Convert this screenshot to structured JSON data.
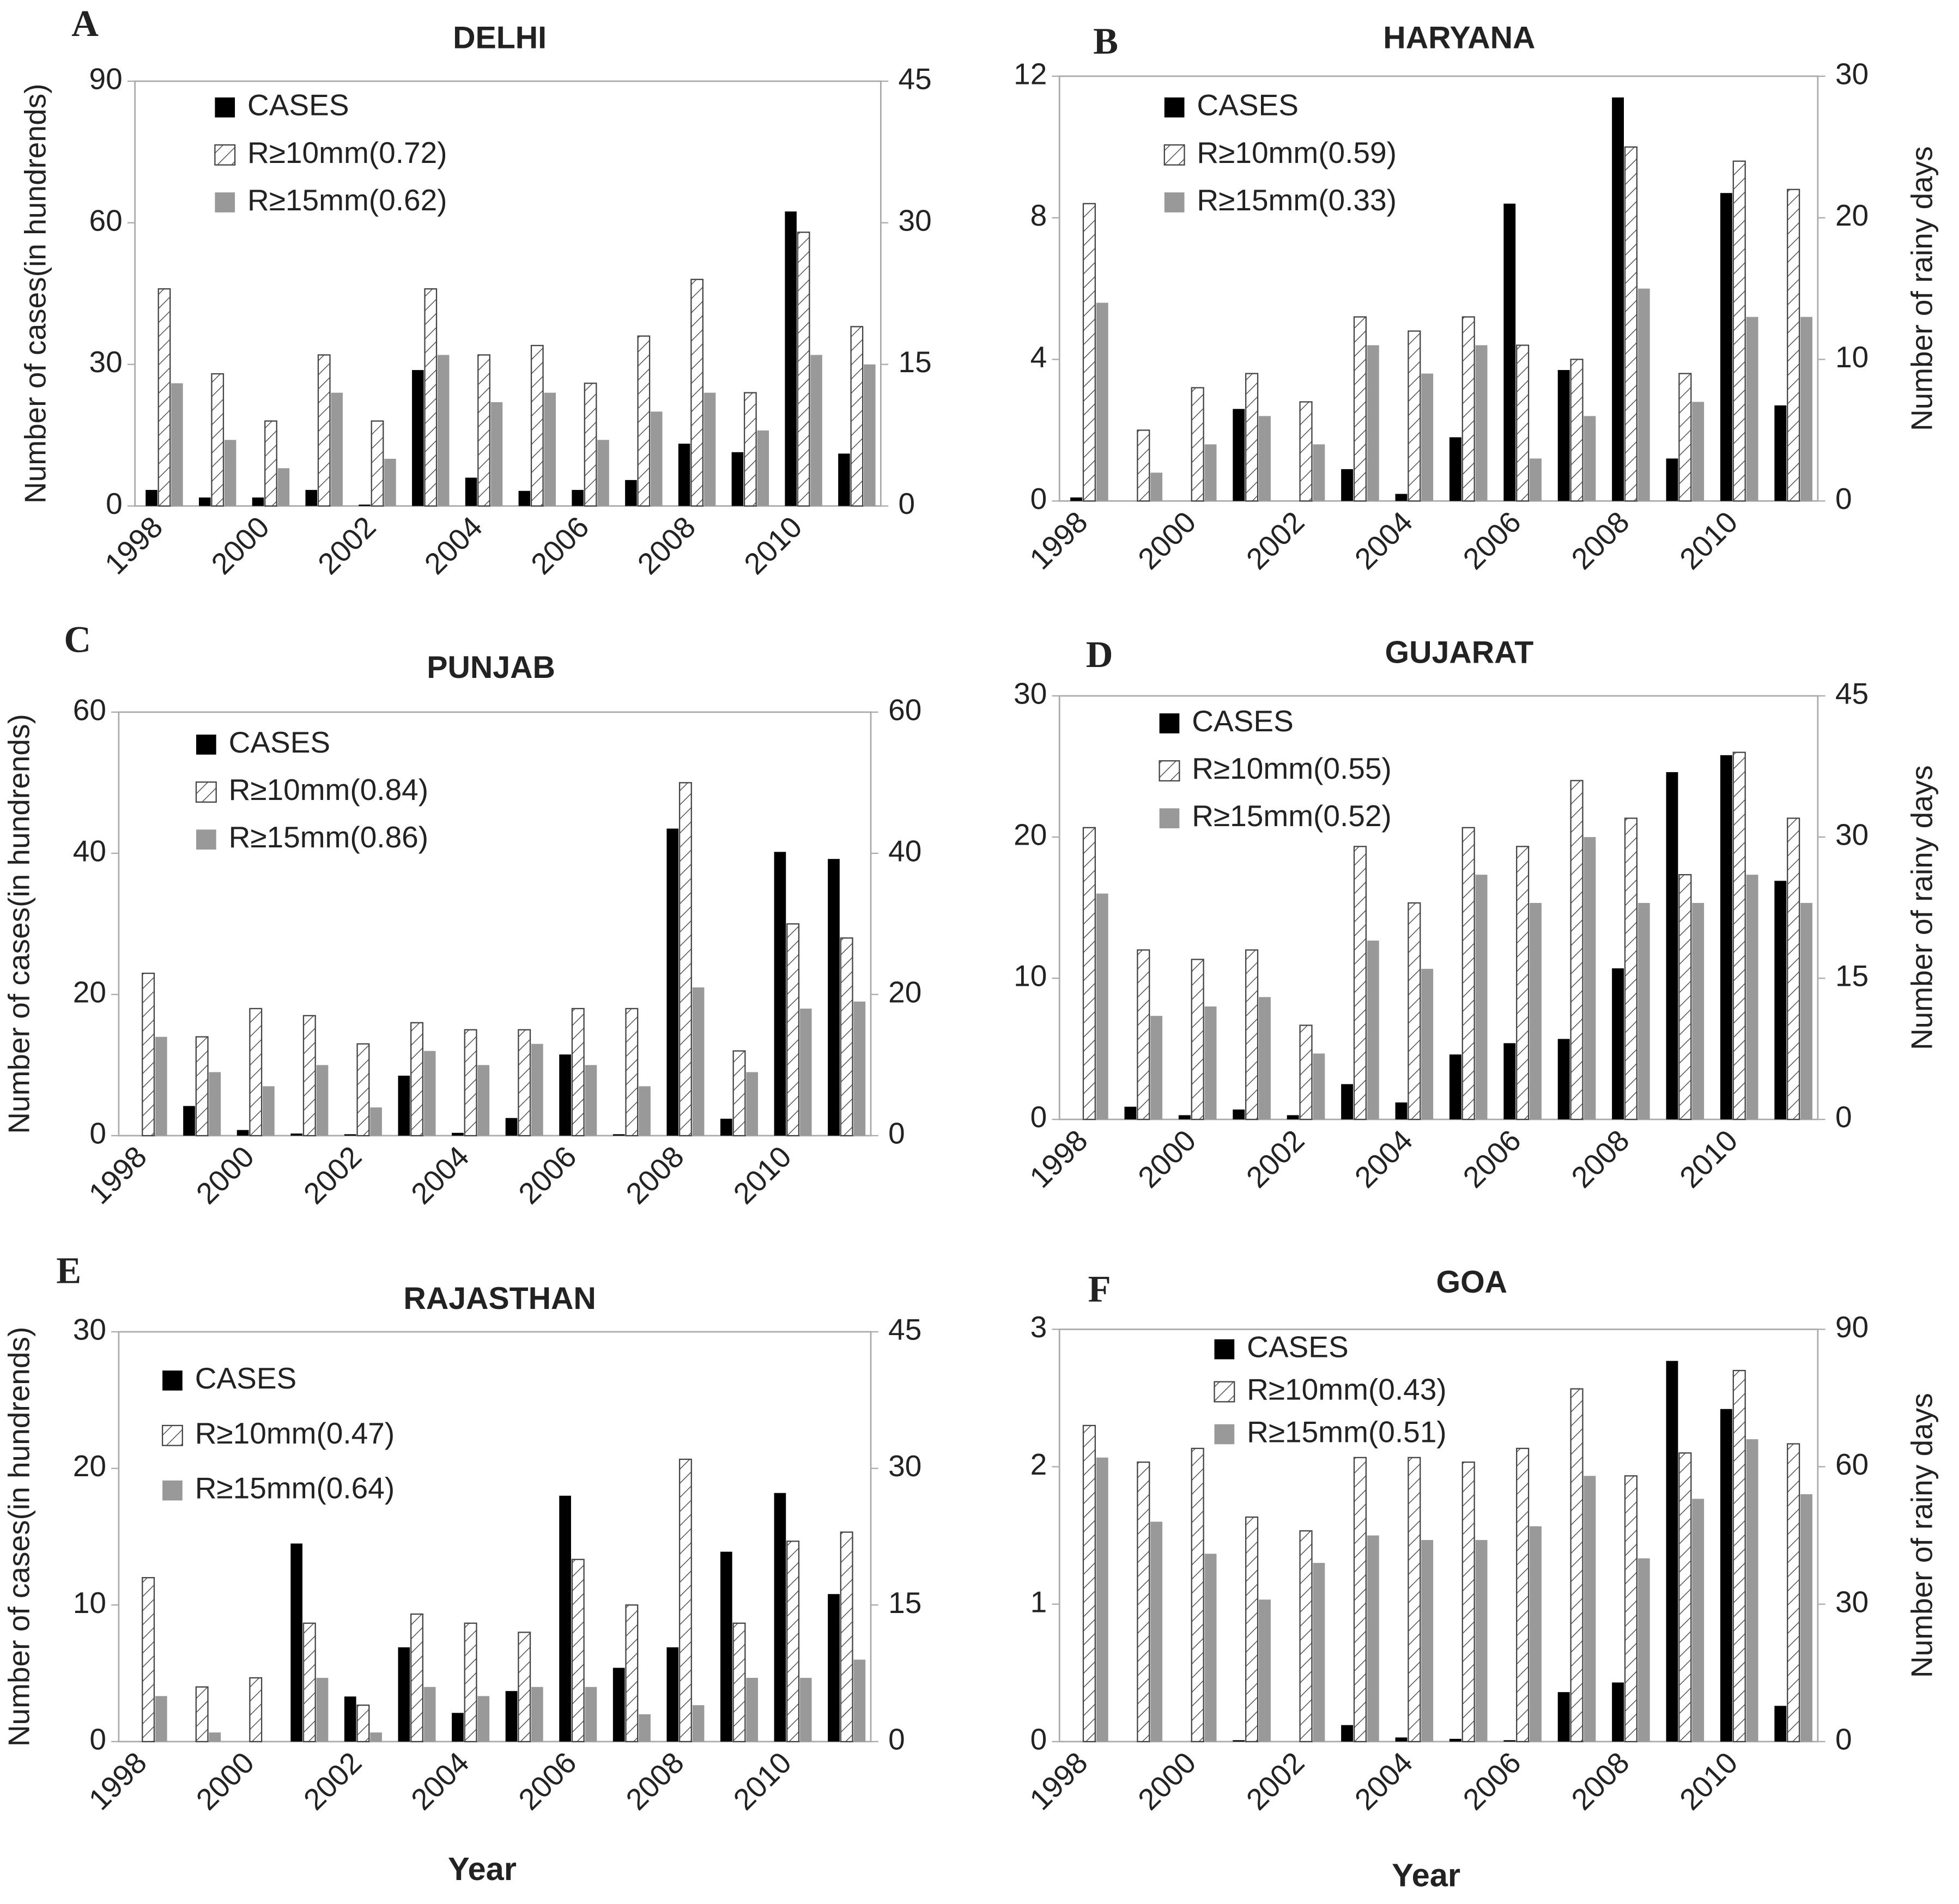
{
  "chart_data": [
    {
      "type": "bar",
      "panel": "A",
      "title": "DELHI",
      "ylabel": "Number of cases(in hundrends)",
      "categories": [
        "1998",
        null,
        "2000",
        null,
        "2002",
        null,
        "2004",
        null,
        "2006",
        null,
        "2008",
        null,
        "2010",
        null
      ],
      "ylim": [
        0,
        90
      ],
      "yticks": [
        0,
        30,
        60,
        90
      ],
      "y2lim": [
        0,
        45
      ],
      "y2ticks": [
        0,
        15,
        30,
        45
      ],
      "series": [
        {
          "name": "CASES",
          "color": "#000000",
          "values": [
            3.4,
            1.8,
            1.8,
            3.4,
            0.3,
            28.8,
            6,
            3.2,
            3.4,
            5.5,
            13.2,
            11.4,
            62.4,
            11.1
          ]
        },
        {
          "name": "R≥10mm(0.72)",
          "color": "#ffffff",
          "hatch": true,
          "axis": "y2",
          "values": [
            23,
            14,
            9,
            16,
            9,
            23,
            16,
            17,
            13,
            18,
            24,
            12,
            29,
            19
          ]
        },
        {
          "name": "R≥15mm(0.62)",
          "color": "#999999",
          "axis": "y2",
          "values": [
            13,
            7,
            4,
            12,
            5,
            16,
            11,
            12,
            7,
            10,
            12,
            8,
            16,
            15
          ]
        }
      ]
    },
    {
      "type": "bar",
      "panel": "B",
      "title": "HARYANA",
      "y2label": "Number of rainy days",
      "categories": [
        "1998",
        null,
        "2000",
        null,
        "2002",
        null,
        "2004",
        null,
        "2006",
        null,
        "2008",
        null,
        "2010",
        null
      ],
      "ylim": [
        0,
        12
      ],
      "yticks": [
        0,
        4,
        8,
        12
      ],
      "y2lim": [
        0,
        30
      ],
      "y2ticks": [
        0,
        10,
        20,
        30
      ],
      "series": [
        {
          "name": "CASES",
          "color": "#000000",
          "values": [
            0.1,
            0,
            0,
            2.6,
            0,
            0.9,
            0.2,
            1.8,
            8.4,
            3.7,
            11.4,
            1.2,
            8.7,
            2.7
          ]
        },
        {
          "name": "R≥10mm(0.59)",
          "color": "#ffffff",
          "hatch": true,
          "axis": "y2",
          "values": [
            21,
            5,
            8,
            9,
            7,
            13,
            12,
            13,
            11,
            10,
            25,
            9,
            24,
            22
          ]
        },
        {
          "name": "R≥15mm(0.33)",
          "color": "#999999",
          "axis": "y2",
          "values": [
            14,
            2,
            4,
            6,
            4,
            11,
            9,
            11,
            3,
            6,
            15,
            7,
            13,
            13
          ]
        }
      ]
    },
    {
      "type": "bar",
      "panel": "C",
      "title": "PUNJAB",
      "ylabel": "Number of cases(in hundrends)",
      "categories": [
        "1998",
        null,
        "2000",
        null,
        "2002",
        null,
        "2004",
        null,
        "2006",
        null,
        "2008",
        null,
        "2010",
        null
      ],
      "ylim": [
        0,
        60
      ],
      "yticks": [
        0,
        20,
        40,
        60
      ],
      "y2lim": [
        0,
        60
      ],
      "y2ticks": [
        0,
        20,
        40,
        60
      ],
      "series": [
        {
          "name": "CASES",
          "color": "#000000",
          "values": [
            0,
            4.2,
            0.8,
            0.3,
            0.2,
            8.5,
            0.4,
            2.5,
            11.5,
            0.2,
            43.5,
            2.4,
            40.2,
            39.2
          ]
        },
        {
          "name": "R≥10mm(0.84)",
          "color": "#ffffff",
          "hatch": true,
          "axis": "y2",
          "values": [
            23,
            14,
            18,
            17,
            13,
            16,
            15,
            15,
            18,
            18,
            50,
            12,
            30,
            28
          ]
        },
        {
          "name": "R≥15mm(0.86)",
          "color": "#999999",
          "axis": "y2",
          "values": [
            14,
            9,
            7,
            10,
            4,
            12,
            10,
            13,
            10,
            7,
            21,
            9,
            18,
            19
          ]
        }
      ]
    },
    {
      "type": "bar",
      "panel": "D",
      "title": "GUJARAT",
      "y2label": "Number of rainy days",
      "categories": [
        "1998",
        null,
        "2000",
        null,
        "2002",
        null,
        "2004",
        null,
        "2006",
        null,
        "2008",
        null,
        "2010",
        null
      ],
      "ylim": [
        0,
        30
      ],
      "yticks": [
        0,
        10,
        20,
        30
      ],
      "y2lim": [
        0,
        45
      ],
      "y2ticks": [
        0,
        15,
        30,
        45
      ],
      "series": [
        {
          "name": "CASES",
          "color": "#000000",
          "values": [
            0,
            0.9,
            0.3,
            0.7,
            0.3,
            2.5,
            1.2,
            4.6,
            5.4,
            5.7,
            10.7,
            24.6,
            25.8,
            16.9
          ]
        },
        {
          "name": "R≥10mm(0.55)",
          "color": "#ffffff",
          "hatch": true,
          "axis": "y2",
          "values": [
            31,
            18,
            17,
            18,
            10,
            29,
            23,
            31,
            29,
            36,
            32,
            26,
            39,
            32
          ]
        },
        {
          "name": "R≥15mm(0.52)",
          "color": "#999999",
          "axis": "y2",
          "values": [
            24,
            11,
            12,
            13,
            7,
            19,
            16,
            26,
            23,
            30,
            23,
            23,
            26,
            23
          ]
        }
      ]
    },
    {
      "type": "bar",
      "panel": "E",
      "title": "RAJASTHAN",
      "ylabel": "Number of cases(in hundrends)",
      "xlabel": "Year",
      "categories": [
        "1998",
        null,
        "2000",
        null,
        "2002",
        null,
        "2004",
        null,
        "2006",
        null,
        "2008",
        null,
        "2010",
        null
      ],
      "ylim": [
        0,
        30
      ],
      "yticks": [
        0,
        10,
        20,
        30
      ],
      "y2lim": [
        0,
        45
      ],
      "y2ticks": [
        0,
        15,
        30,
        45
      ],
      "series": [
        {
          "name": "CASES",
          "color": "#000000",
          "values": [
            0,
            0,
            0,
            14.5,
            3.3,
            6.9,
            2.1,
            3.7,
            18,
            5.4,
            6.9,
            13.9,
            18.2,
            10.8
          ]
        },
        {
          "name": "R≥10mm(0.47)",
          "color": "#ffffff",
          "hatch": true,
          "axis": "y2",
          "values": [
            18,
            6,
            7,
            13,
            4,
            14,
            13,
            12,
            20,
            15,
            31,
            13,
            22,
            23
          ]
        },
        {
          "name": "R≥15mm(0.64)",
          "color": "#999999",
          "axis": "y2",
          "values": [
            5,
            1,
            0,
            7,
            1,
            6,
            5,
            6,
            6,
            3,
            4,
            7,
            7,
            9
          ]
        }
      ]
    },
    {
      "type": "bar",
      "panel": "F",
      "title": "GOA",
      "y2label": "Number of rainy days",
      "xlabel": "Year",
      "categories": [
        "1998",
        null,
        "2000",
        null,
        "2002",
        null,
        "2004",
        null,
        "2006",
        null,
        "2008",
        null,
        "2010",
        null
      ],
      "ylim": [
        0,
        3
      ],
      "yticks": [
        0,
        1,
        2,
        3
      ],
      "y2lim": [
        0,
        90
      ],
      "y2ticks": [
        0,
        30,
        60,
        90
      ],
      "series": [
        {
          "name": "CASES",
          "color": "#000000",
          "values": [
            0,
            0,
            0,
            0.01,
            0,
            0.12,
            0.03,
            0.02,
            0.01,
            0.36,
            0.43,
            2.77,
            2.42,
            0.26
          ]
        },
        {
          "name": "R≥10mm(0.43)",
          "color": "#ffffff",
          "hatch": true,
          "axis": "y2",
          "values": [
            69,
            61,
            64,
            49,
            46,
            62,
            62,
            61,
            64,
            77,
            58,
            63,
            81,
            65
          ]
        },
        {
          "name": "R≥15mm(0.51)",
          "color": "#999999",
          "axis": "y2",
          "values": [
            62,
            48,
            41,
            31,
            39,
            45,
            44,
            44,
            47,
            58,
            40,
            53,
            66,
            54
          ]
        }
      ]
    }
  ]
}
